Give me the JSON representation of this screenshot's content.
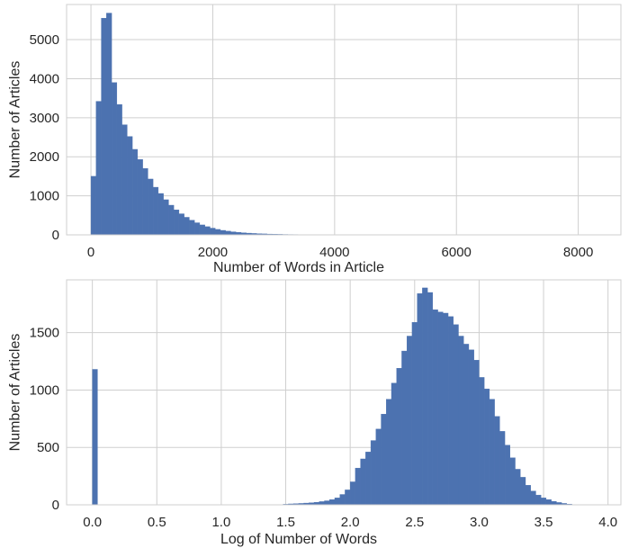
{
  "chart_data": [
    {
      "type": "bar",
      "title": "",
      "xlabel": "Number of Words in Article",
      "ylabel": "Number of Articles",
      "xlim": [
        -400,
        8700
      ],
      "ylim": [
        0,
        5900
      ],
      "xticks": [
        0,
        2000,
        4000,
        6000,
        8000
      ],
      "xtick_labels": [
        "0",
        "2000",
        "4000",
        "6000",
        "8000"
      ],
      "yticks": [
        0,
        1000,
        2000,
        3000,
        4000,
        5000
      ],
      "ytick_labels": [
        "0",
        "1000",
        "2000",
        "3000",
        "4000",
        "5000"
      ],
      "grid": true,
      "color": "#4c72b0",
      "bin_width": 85,
      "bin_start": 0,
      "values": [
        1500,
        3420,
        5550,
        5680,
        3900,
        3340,
        2820,
        2520,
        2190,
        1930,
        1700,
        1430,
        1220,
        1060,
        900,
        760,
        640,
        540,
        450,
        375,
        310,
        255,
        210,
        172,
        140,
        115,
        95,
        78,
        64,
        53,
        44,
        36,
        30,
        25,
        20,
        17,
        14,
        11,
        9,
        8,
        6,
        5,
        4,
        4,
        3,
        3,
        2,
        2,
        2,
        1
      ]
    },
    {
      "type": "bar",
      "title": "",
      "xlabel": "Log of Number of Words",
      "ylabel": "Number of Articles",
      "xlim": [
        -0.2,
        4.1
      ],
      "ylim": [
        0,
        1960
      ],
      "xticks": [
        0.0,
        0.5,
        1.0,
        1.5,
        2.0,
        2.5,
        3.0,
        3.5,
        4.0
      ],
      "xtick_labels": [
        "0.0",
        "0.5",
        "1.0",
        "1.5",
        "2.0",
        "2.5",
        "3.0",
        "3.5",
        "4.0"
      ],
      "yticks": [
        0,
        500,
        1000,
        1500
      ],
      "ytick_labels": [
        "0",
        "500",
        "1000",
        "1500"
      ],
      "grid": true,
      "color": "#4c72b0",
      "bin_width": 0.04,
      "bins": [
        {
          "x": 0.0,
          "v": 1180
        },
        {
          "x": 1.48,
          "v": 5
        },
        {
          "x": 1.52,
          "v": 8
        },
        {
          "x": 1.56,
          "v": 10
        },
        {
          "x": 1.6,
          "v": 12
        },
        {
          "x": 1.64,
          "v": 15
        },
        {
          "x": 1.68,
          "v": 18
        },
        {
          "x": 1.72,
          "v": 22
        },
        {
          "x": 1.76,
          "v": 28
        },
        {
          "x": 1.8,
          "v": 35
        },
        {
          "x": 1.84,
          "v": 45
        },
        {
          "x": 1.88,
          "v": 60
        },
        {
          "x": 1.92,
          "v": 90
        },
        {
          "x": 1.96,
          "v": 130
        },
        {
          "x": 2.0,
          "v": 200
        },
        {
          "x": 2.04,
          "v": 320
        },
        {
          "x": 2.08,
          "v": 400
        },
        {
          "x": 2.12,
          "v": 460
        },
        {
          "x": 2.16,
          "v": 560
        },
        {
          "x": 2.2,
          "v": 660
        },
        {
          "x": 2.24,
          "v": 790
        },
        {
          "x": 2.28,
          "v": 920
        },
        {
          "x": 2.32,
          "v": 1060
        },
        {
          "x": 2.36,
          "v": 1190
        },
        {
          "x": 2.4,
          "v": 1340
        },
        {
          "x": 2.44,
          "v": 1470
        },
        {
          "x": 2.48,
          "v": 1590
        },
        {
          "x": 2.52,
          "v": 1840
        },
        {
          "x": 2.56,
          "v": 1890
        },
        {
          "x": 2.6,
          "v": 1850
        },
        {
          "x": 2.64,
          "v": 1700
        },
        {
          "x": 2.68,
          "v": 1680
        },
        {
          "x": 2.72,
          "v": 1670
        },
        {
          "x": 2.76,
          "v": 1640
        },
        {
          "x": 2.8,
          "v": 1570
        },
        {
          "x": 2.84,
          "v": 1470
        },
        {
          "x": 2.88,
          "v": 1400
        },
        {
          "x": 2.92,
          "v": 1350
        },
        {
          "x": 2.96,
          "v": 1260
        },
        {
          "x": 3.0,
          "v": 1110
        },
        {
          "x": 3.04,
          "v": 1010
        },
        {
          "x": 3.08,
          "v": 920
        },
        {
          "x": 3.12,
          "v": 770
        },
        {
          "x": 3.16,
          "v": 640
        },
        {
          "x": 3.2,
          "v": 520
        },
        {
          "x": 3.24,
          "v": 410
        },
        {
          "x": 3.28,
          "v": 310
        },
        {
          "x": 3.32,
          "v": 240
        },
        {
          "x": 3.36,
          "v": 170
        },
        {
          "x": 3.4,
          "v": 120
        },
        {
          "x": 3.44,
          "v": 85
        },
        {
          "x": 3.48,
          "v": 60
        },
        {
          "x": 3.52,
          "v": 45
        },
        {
          "x": 3.56,
          "v": 30
        },
        {
          "x": 3.6,
          "v": 20
        },
        {
          "x": 3.64,
          "v": 12
        },
        {
          "x": 3.68,
          "v": 6
        }
      ]
    }
  ]
}
